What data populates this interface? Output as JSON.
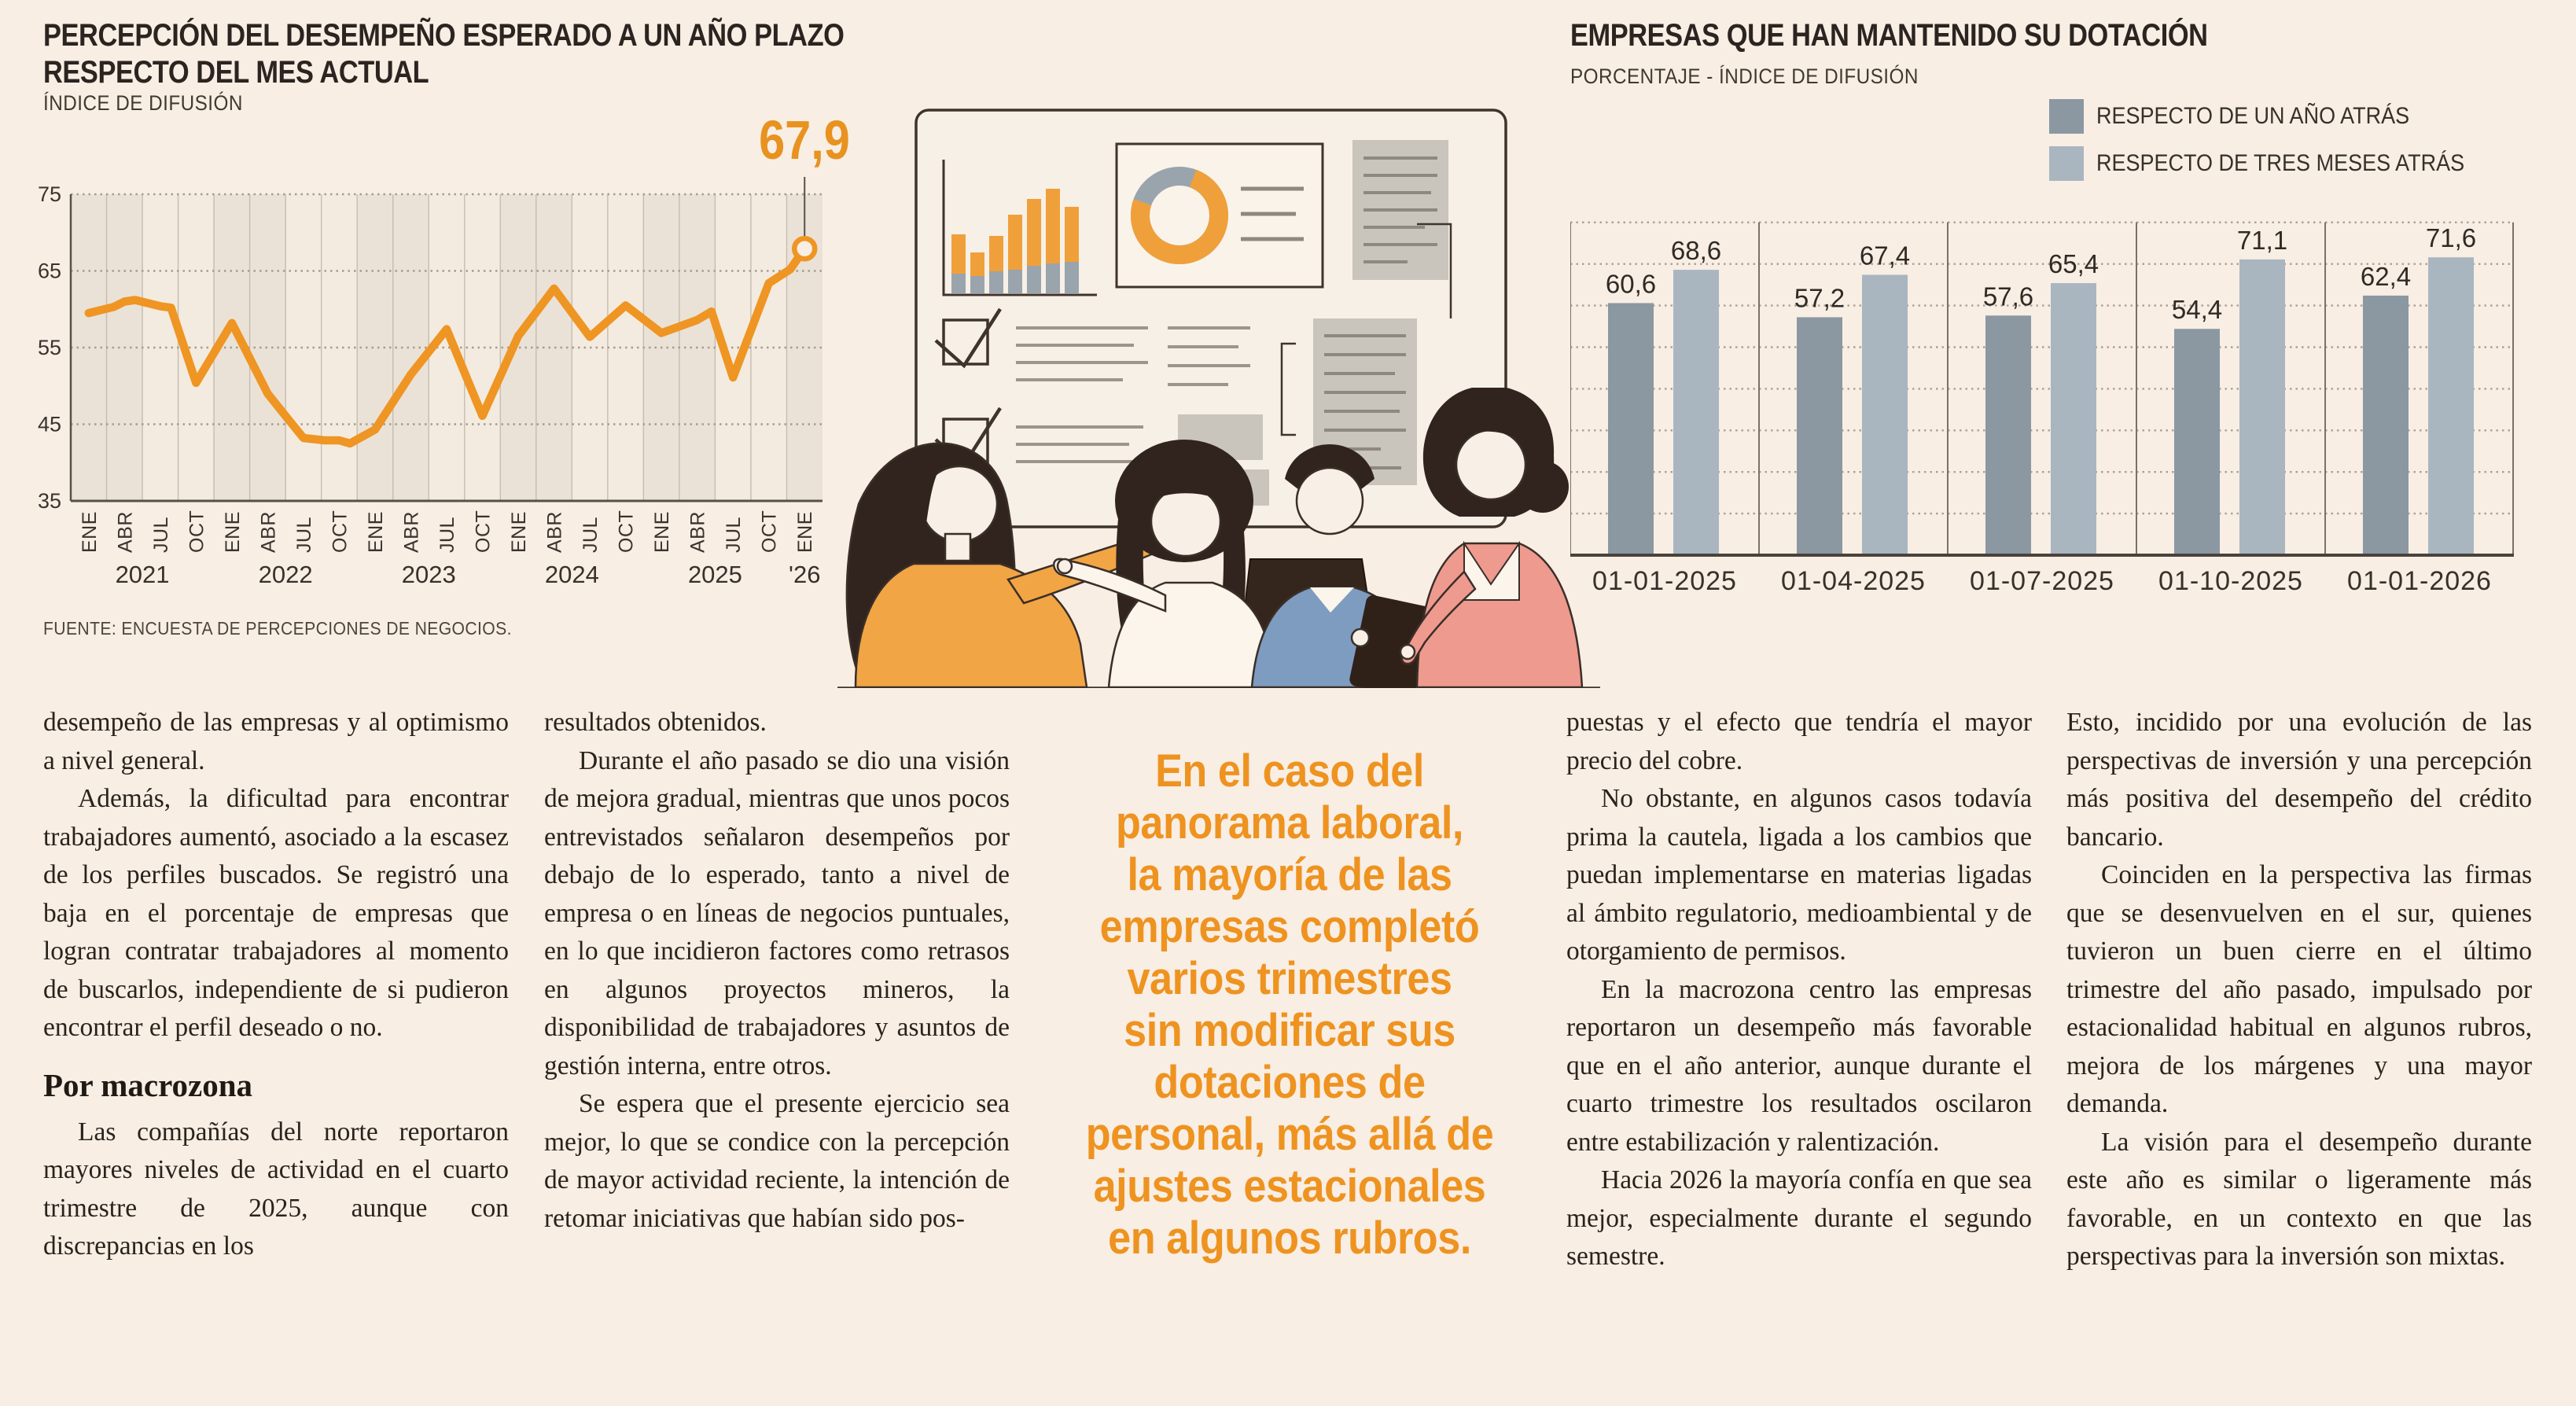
{
  "colors": {
    "background": "#f8eee4",
    "accent_orange": "#e8921f",
    "line_orange": "#ef9523",
    "ink": "#2b2420",
    "body_text": "#29231d",
    "band_gray": "#eae2d7",
    "band_cream": "#f3ebdf",
    "grid_dot": "#a79c8d",
    "axis_dark": "#57504a",
    "bar_dark": "#8b98a2",
    "bar_light": "#a9b6c0"
  },
  "left_chart": {
    "title_line1": "PERCEPCIÓN DEL DESEMPEÑO ESPERADO A UN AÑO PLAZO",
    "title_line2": "RESPECTO DEL MES ACTUAL",
    "subtitle": "ÍNDICE DE DIFUSIÓN",
    "highlight": "67,9",
    "source": "FUENTE: ENCUESTA DE PERCEPCIONES DE NEGOCIOS."
  },
  "right_chart": {
    "title": "EMPRESAS QUE HAN MANTENIDO SU DOTACIÓN",
    "subtitle": "PORCENTAJE - ÍNDICE DE DIFUSIÓN"
  },
  "chart_data": [
    {
      "type": "line",
      "title": "PERCEPCIÓN DEL DESEMPEÑO ESPERADO A UN AÑO PLAZO RESPECTO DEL MES ACTUAL",
      "ylabel": "ÍNDICE DE DIFUSIÓN",
      "ylim": [
        35,
        75
      ],
      "yticks": [
        75,
        65,
        55,
        45,
        35
      ],
      "x_unit": "quarters since ENE 2021",
      "months": [
        "ENE",
        "ABR",
        "JUL",
        "OCT"
      ],
      "years": [
        "2021",
        "2022",
        "2023",
        "2024",
        "2025",
        "'26"
      ],
      "last_value_label": "67,9",
      "line_color": "#ef9523",
      "points": [
        [
          0,
          59.5
        ],
        [
          0.7,
          60.3
        ],
        [
          1,
          61.0
        ],
        [
          1.3,
          61.2
        ],
        [
          2,
          60.4
        ],
        [
          2.3,
          60.2
        ],
        [
          3,
          50.4
        ],
        [
          4,
          58.2
        ],
        [
          5,
          49.0
        ],
        [
          5.6,
          45.5
        ],
        [
          6,
          43.2
        ],
        [
          6.6,
          42.9
        ],
        [
          7,
          42.9
        ],
        [
          7.3,
          42.5
        ],
        [
          8,
          44.3
        ],
        [
          9,
          51.5
        ],
        [
          10,
          57.4
        ],
        [
          11,
          46.1
        ],
        [
          12,
          56.5
        ],
        [
          13,
          62.7
        ],
        [
          14,
          56.4
        ],
        [
          15,
          60.5
        ],
        [
          16,
          56.9
        ],
        [
          17,
          58.6
        ],
        [
          17.4,
          59.7
        ],
        [
          18,
          51.1
        ],
        [
          19,
          63.4
        ],
        [
          19.6,
          65.2
        ],
        [
          20,
          67.9
        ]
      ]
    },
    {
      "type": "bar",
      "title": "EMPRESAS QUE HAN MANTENIDO SU DOTACIÓN",
      "subtitle": "PORCENTAJE - ÍNDICE DE DIFUSIÓN",
      "categories": [
        "01-01-2025",
        "01-04-2025",
        "01-07-2025",
        "01-10-2025",
        "01-01-2026"
      ],
      "series": [
        {
          "name": "RESPECTO DE UN AÑO ATRÁS",
          "color": "#8b98a2",
          "values": [
            60.6,
            57.2,
            57.6,
            54.4,
            62.4
          ]
        },
        {
          "name": "RESPECTO DE TRES MESES ATRÁS",
          "color": "#a9b6c0",
          "values": [
            68.6,
            67.4,
            65.4,
            71.1,
            71.6
          ]
        }
      ],
      "ylim": [
        0,
        80
      ],
      "gridline_step": 10,
      "grid": "dotted",
      "legend_position": "top-right",
      "value_labels": true
    }
  ],
  "article": {
    "col1_paras": [
      "desempeño de las empresas y al optimismo a nivel general.",
      "Además, la dificultad para encontrar trabajadores aumentó, asociado a la escasez de los perfiles buscados. Se registró una baja en el porcentaje de empresas que logran contratar trabajadores al momento de buscarlos, independiente de si pudieron encontrar el perfil deseado o no."
    ],
    "col1_subhead": "Por macrozona",
    "col1_paras2": [
      "Las compañías del norte reportaron mayores niveles de actividad en el cuarto trimestre de 2025, aunque con discrepancias en los"
    ],
    "col2_paras": [
      "resultados obtenidos.",
      "Durante el año pasado se dio una visión de mejora gradual, mientras que unos pocos entrevistados señalaron desempeños por debajo de lo esperado, tanto a nivel de empresa o en líneas de negocios puntuales, en lo que incidieron factores como retrasos en algunos proyectos mineros, la disponibilidad de trabajadores y asuntos de gestión interna, entre otros.",
      "Se espera que el presente ejercicio sea mejor, lo que se condice con la percepción de mayor actividad reciente, la intención de retomar iniciativas que habían sido pos-"
    ],
    "quote_lines": [
      "En el caso del",
      "panorama laboral,",
      "la mayoría de las",
      "empresas completó",
      "varios trimestres",
      "sin modificar sus",
      "dotaciones de",
      "personal, más allá de",
      "ajustes estacionales",
      "en algunos rubros."
    ],
    "col4_paras": [
      "puestas y el efecto que tendría el mayor precio del cobre.",
      "No obstante, en algunos casos todavía prima la cautela, ligada a los cambios que puedan implementarse en materias ligadas al ámbito regulatorio, medioambiental y de otorgamiento de permisos.",
      "En la macrozona centro las empresas reportaron un desempeño más favorable que en el año anterior, aunque durante el cuarto trimestre los resultados oscilaron entre estabilización y ralentización.",
      "Hacia 2026 la mayoría confía en que sea mejor, especialmente durante el segundo semestre."
    ],
    "col5_paras": [
      "Esto, incidido por una evolución de las perspectivas de inversión y una percepción más positiva del desempeño del crédito bancario.",
      "Coinciden en la perspectiva las firmas que se desenvuelven en el sur, quienes tuvieron un buen cierre en el último trimestre del año pasado, impulsado por estacionalidad habitual en algunos rubros, mejora de los márgenes y una mayor demanda.",
      "La visión para el desempeño durante este año es similar o ligeramente más favorable, en un contexto en que las perspectivas para la inversión son mixtas."
    ]
  }
}
